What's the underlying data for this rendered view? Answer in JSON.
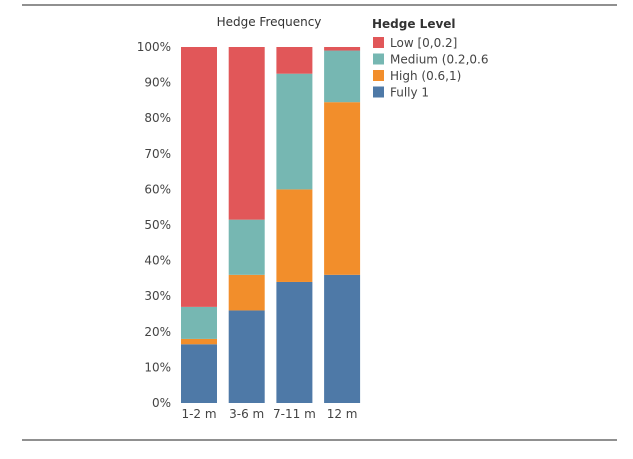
{
  "chart_data": {
    "type": "bar",
    "stacked": true,
    "normalized": true,
    "title": "Hedge Frequency",
    "xlabel": "",
    "ylabel": "",
    "ylim": [
      0,
      100
    ],
    "y_tick_labels": [
      "0%",
      "10%",
      "20%",
      "30%",
      "40%",
      "50%",
      "60%",
      "70%",
      "80%",
      "90%",
      "100%"
    ],
    "y_ticks": [
      0,
      10,
      20,
      30,
      40,
      50,
      60,
      70,
      80,
      90,
      100
    ],
    "grid": false,
    "categories": [
      "1-2 m",
      "3-6 m",
      "7-11 m",
      "12 m"
    ],
    "legend": {
      "title": "Hedge Level",
      "placement": "right"
    },
    "series": [
      {
        "name": "Fully 1",
        "color": "#4e79a7",
        "values": [
          16.5,
          26.0,
          34.0,
          36.0
        ]
      },
      {
        "name": "High (0.6,1)",
        "color": "#f28e2b",
        "values": [
          1.5,
          10.0,
          26.0,
          48.5
        ]
      },
      {
        "name": "Medium (0.2,0.6",
        "color": "#76b7b2",
        "values": [
          9.0,
          15.5,
          32.5,
          14.5
        ]
      },
      {
        "name": "Low [0,0.2]",
        "color": "#e15759",
        "values": [
          73.0,
          48.5,
          7.5,
          1.0
        ]
      }
    ],
    "legend_order": [
      "Low [0,0.2]",
      "Medium (0.2,0.6",
      "High (0.6,1)",
      "Fully 1"
    ]
  }
}
